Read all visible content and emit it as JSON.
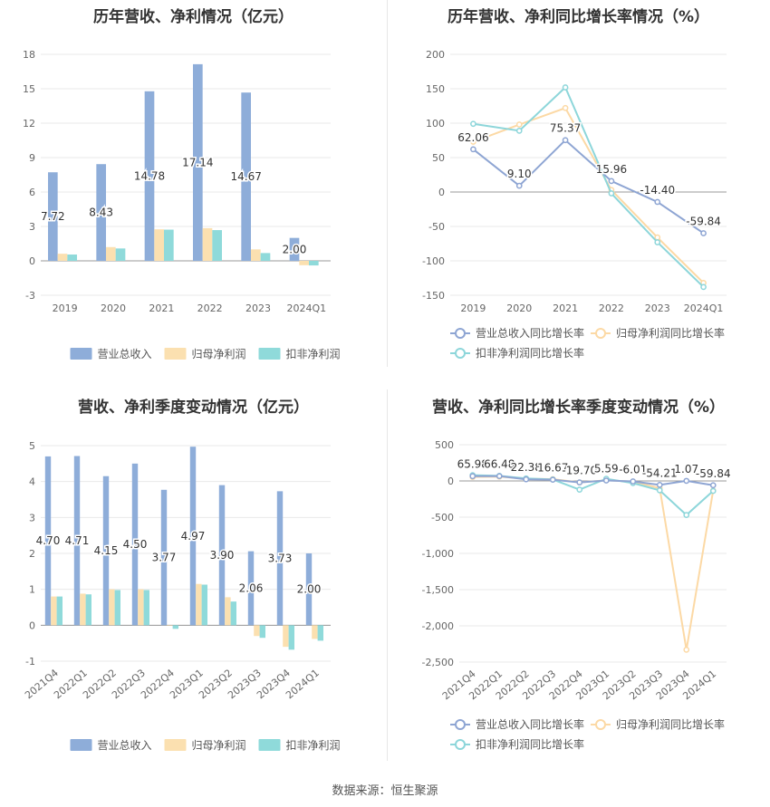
{
  "source_label": "数据来源：恒生聚源",
  "chart_data": [
    {
      "type": "bar",
      "title": "历年营收、净利情况（亿元）",
      "categories": [
        "2019",
        "2020",
        "2021",
        "2022",
        "2023",
        "2024Q1"
      ],
      "ylim": [
        -3,
        18
      ],
      "yticks": [
        -3,
        0,
        3,
        6,
        9,
        12,
        15,
        18
      ],
      "series": [
        {
          "name": "营业总收入",
          "color": "#8eadd9",
          "values": [
            7.72,
            8.43,
            14.78,
            17.14,
            14.67,
            2.0
          ],
          "labels": [
            "7.72",
            "8.43",
            "14.78",
            "17.14",
            "14.67",
            "2.00"
          ]
        },
        {
          "name": "归母净利润",
          "color": "#fbe0b0",
          "values": [
            0.62,
            1.2,
            2.75,
            2.85,
            1.0,
            -0.38
          ]
        },
        {
          "name": "扣非净利润",
          "color": "#8fdada",
          "values": [
            0.55,
            1.08,
            2.72,
            2.68,
            0.68,
            -0.4
          ]
        }
      ],
      "legend": "bottom",
      "grid": true
    },
    {
      "type": "line",
      "title": "历年营收、净利同比增长率情况（%）",
      "categories": [
        "2019",
        "2020",
        "2021",
        "2022",
        "2023",
        "2024Q1"
      ],
      "ylim": [
        -150,
        200
      ],
      "yticks": [
        -150,
        -100,
        -50,
        0,
        50,
        100,
        150,
        200
      ],
      "series": [
        {
          "name": "营业总收入同比增长率",
          "color": "#8ea5d3",
          "values": [
            62.06,
            9.1,
            75.37,
            15.96,
            -14.4,
            -59.84
          ],
          "labels": [
            "62.06",
            "9.10",
            "75.37",
            "15.96",
            "-14.40",
            "-59.84"
          ]
        },
        {
          "name": "归母净利润同比增长率",
          "color": "#fcd9a5",
          "values": [
            73,
            98,
            122,
            3,
            -66,
            -132
          ]
        },
        {
          "name": "扣非净利润同比增长率",
          "color": "#8dd6da",
          "values": [
            99,
            89,
            152,
            -2,
            -73,
            -138
          ]
        }
      ],
      "legend": "bottom",
      "grid": true
    },
    {
      "type": "bar",
      "title": "营收、净利季度变动情况（亿元）",
      "categories": [
        "2021Q4",
        "2022Q1",
        "2022Q2",
        "2022Q3",
        "2022Q4",
        "2023Q1",
        "2023Q2",
        "2023Q3",
        "2023Q4",
        "2024Q1"
      ],
      "ylim": [
        -1,
        5
      ],
      "yticks": [
        -1,
        0,
        1,
        2,
        3,
        4,
        5
      ],
      "series": [
        {
          "name": "营业总收入",
          "color": "#8eadd9",
          "values": [
            4.7,
            4.71,
            4.15,
            4.5,
            3.77,
            4.97,
            3.9,
            2.06,
            3.73,
            2.0
          ],
          "labels": [
            "4.70",
            "4.71",
            "4.15",
            "4.50",
            "3.77",
            "4.97",
            "3.90",
            "2.06",
            "3.73",
            "2.00"
          ]
        },
        {
          "name": "归母净利润",
          "color": "#fbe0b0",
          "values": [
            0.8,
            0.88,
            1.0,
            1.0,
            0.0,
            1.15,
            0.78,
            -0.3,
            -0.6,
            -0.38
          ]
        },
        {
          "name": "扣非净利润",
          "color": "#8fdada",
          "values": [
            0.8,
            0.86,
            0.98,
            0.98,
            -0.1,
            1.13,
            0.66,
            -0.35,
            -0.68,
            -0.43
          ]
        }
      ],
      "legend": "bottom",
      "grid": true
    },
    {
      "type": "line",
      "title": "营收、净利同比增长率季度变动情况（%）",
      "categories": [
        "2021Q4",
        "2022Q1",
        "2022Q2",
        "2022Q3",
        "2022Q4",
        "2023Q1",
        "2023Q2",
        "2023Q3",
        "2023Q4",
        "2024Q1"
      ],
      "ylim": [
        -2500,
        500
      ],
      "yticks": [
        -2500,
        -2000,
        -1500,
        -1000,
        -500,
        0,
        500
      ],
      "ytick_labels": [
        "-2,500",
        "-2,000",
        "-1,500",
        "-1,000",
        "-500",
        "0",
        "500"
      ],
      "series": [
        {
          "name": "营业总收入同比增长率",
          "color": "#8ea5d3",
          "values": [
            65.98,
            66.48,
            22.38,
            16.67,
            -19.7,
            5.59,
            -6.01,
            -54.21,
            1.07,
            -59.84
          ],
          "labels": [
            "65.98",
            "66.48",
            "22.38",
            "16.67",
            "-19.70",
            "5.59",
            "-6.01",
            "-54.21",
            "1.07",
            "-59.84"
          ]
        },
        {
          "name": "归母净利润同比增长率",
          "color": "#fcd9a5",
          "values": [
            55,
            60,
            30,
            25,
            -20,
            10,
            -10,
            -100,
            -2330,
            -132
          ]
        },
        {
          "name": "扣非净利润同比增长率",
          "color": "#8dd6da",
          "values": [
            80,
            70,
            35,
            20,
            -120,
            30,
            -30,
            -130,
            -470,
            -138
          ]
        }
      ],
      "legend": "bottom",
      "grid": true
    }
  ]
}
